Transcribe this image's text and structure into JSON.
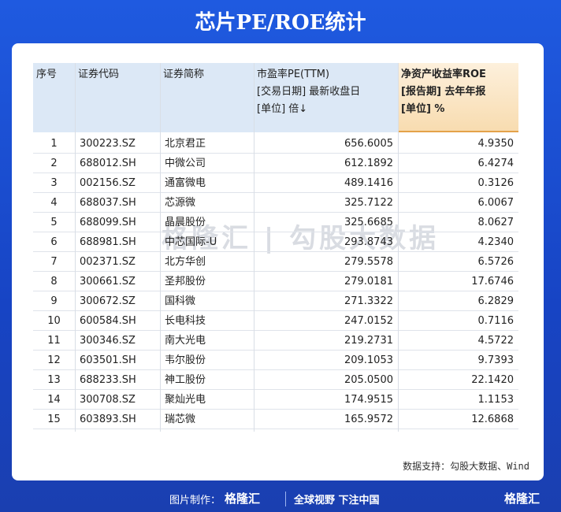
{
  "header": {
    "title": "芯片PE/ROE统计"
  },
  "table": {
    "columns": [
      [
        "序号"
      ],
      [
        "证券代码"
      ],
      [
        "证券简称"
      ],
      [
        "市盈率PE(TTM)",
        "[交易日期] 最新收盘日",
        "[单位] 倍↓"
      ],
      [
        "净资产收益率ROE",
        "[报告期] 去年年报",
        "[单位] %"
      ]
    ],
    "rows": [
      [
        "1",
        "300223.SZ",
        "北京君正",
        "656.6005",
        "4.9350"
      ],
      [
        "2",
        "688012.SH",
        "中微公司",
        "612.1892",
        "6.4274"
      ],
      [
        "3",
        "002156.SZ",
        "通富微电",
        "489.1416",
        "0.3126"
      ],
      [
        "4",
        "688037.SH",
        "芯源微",
        "325.7122",
        "6.0067"
      ],
      [
        "5",
        "688099.SH",
        "晶晨股份",
        "325.6685",
        "8.0627"
      ],
      [
        "6",
        "688981.SH",
        "中芯国际-U",
        "293.8743",
        "4.2340"
      ],
      [
        "7",
        "002371.SZ",
        "北方华创",
        "279.5578",
        "6.5726"
      ],
      [
        "8",
        "300661.SZ",
        "圣邦股份",
        "279.0181",
        "17.6746"
      ],
      [
        "9",
        "300672.SZ",
        "国科微",
        "271.3322",
        "6.2829"
      ],
      [
        "10",
        "600584.SH",
        "长电科技",
        "247.0152",
        "0.7116"
      ],
      [
        "11",
        "300346.SZ",
        "南大光电",
        "219.2731",
        "4.5722"
      ],
      [
        "12",
        "603501.SH",
        "韦尔股份",
        "209.1053",
        "9.7393"
      ],
      [
        "13",
        "688233.SH",
        "神工股份",
        "205.0500",
        "22.1420"
      ],
      [
        "14",
        "300708.SZ",
        "聚灿光电",
        "174.9515",
        "1.1153"
      ],
      [
        "15",
        "603893.SH",
        "瑞芯微",
        "165.9572",
        "12.6868"
      ]
    ]
  },
  "watermark": {
    "brand": "格隆汇",
    "text": "勾股大数据"
  },
  "source": "数据支持：勾股大数据、Wind",
  "footer": {
    "maker": "图片制作：",
    "brand": "格隆汇",
    "slogan": "全球视野 下注中国",
    "logo": "格隆汇"
  }
}
